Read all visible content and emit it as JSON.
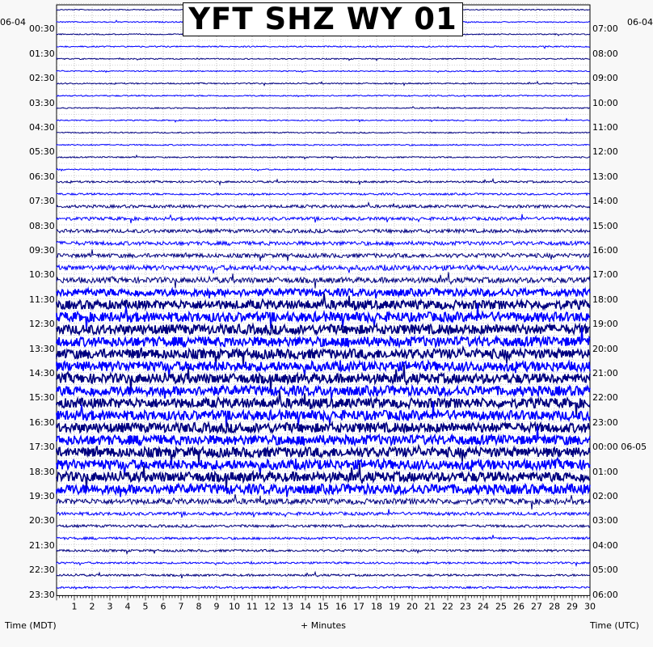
{
  "chart_data": {
    "type": "line",
    "title": "YFT SHZ WY 01",
    "left_date": "06-04",
    "right_date": "06-04",
    "left_axis_label": "Time (MDT)",
    "right_axis_label": "Time (UTC)",
    "x_axis_label": "+ Minutes",
    "x_range": [
      0,
      30
    ],
    "x_ticks": [
      "1",
      "2",
      "3",
      "4",
      "5",
      "6",
      "7",
      "8",
      "9",
      "10",
      "11",
      "12",
      "13",
      "14",
      "15",
      "16",
      "17",
      "18",
      "19",
      "20",
      "21",
      "22",
      "23",
      "24",
      "25",
      "26",
      "27",
      "28",
      "29",
      "30"
    ],
    "left_hour_labels": [
      "00:30",
      "01:30",
      "02:30",
      "03:30",
      "04:30",
      "05:30",
      "06:30",
      "07:30",
      "08:30",
      "09:30",
      "10:30",
      "11:30",
      "12:30",
      "13:30",
      "14:30",
      "15:30",
      "16:30",
      "17:30",
      "18:30",
      "19:30",
      "20:30",
      "21:30",
      "22:30",
      "23:30"
    ],
    "right_hour_labels": [
      "07:00",
      "08:00",
      "09:00",
      "10:00",
      "11:00",
      "12:00",
      "13:00",
      "14:00",
      "15:00",
      "16:00",
      "17:00",
      "18:00",
      "19:00",
      "20:00",
      "21:00",
      "22:00",
      "23:00",
      "00:00 06-05",
      "01:00",
      "02:00",
      "03:00",
      "04:00",
      "05:00",
      "06:00"
    ],
    "traces_count": 48,
    "trace_colors": [
      "#000080",
      "#0000ff"
    ],
    "grid": true,
    "trace_noise_amplitude": [
      0.6,
      0.7,
      0.7,
      0.8,
      0.7,
      0.7,
      0.8,
      0.8,
      0.7,
      0.7,
      0.7,
      0.8,
      0.8,
      0.8,
      1.2,
      1.2,
      1.8,
      2.0,
      2.2,
      2.4,
      2.6,
      3.2,
      3.5,
      4.5,
      5.5,
      6.0,
      6.0,
      6.0,
      6.0,
      6.0,
      6.0,
      6.0,
      6.0,
      6.0,
      6.0,
      6.0,
      6.0,
      6.0,
      6.0,
      6.0,
      3.5,
      2.0,
      1.6,
      1.4,
      1.4,
      1.2,
      1.3,
      1.2
    ]
  }
}
